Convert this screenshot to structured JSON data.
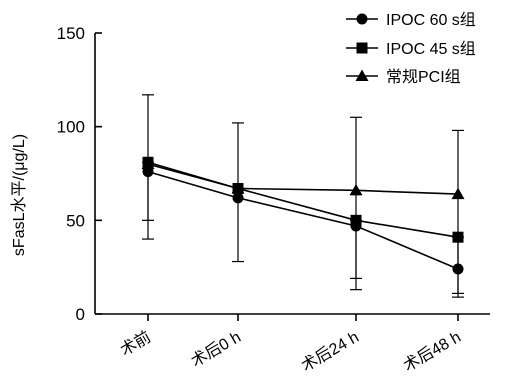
{
  "chart_data": {
    "type": "line",
    "title": "",
    "xlabel": "",
    "ylabel": "sFasL水平/(μg/L)",
    "ylim": [
      0,
      150
    ],
    "yticks": [
      0,
      50,
      100,
      150
    ],
    "categories": [
      "术前",
      "术后0 h",
      "术后24 h",
      "术后48 h"
    ],
    "grid": false,
    "legend_position": "top-right",
    "series": [
      {
        "name": "IPOC 60 s组",
        "marker": "circle",
        "values": [
          76,
          62,
          47,
          24
        ],
        "error": [
          [
            40,
            117
          ],
          [
            28,
            102
          ],
          [
            13,
            105
          ],
          [
            9,
            98
          ]
        ]
      },
      {
        "name": "IPOC 45 s组",
        "marker": "square",
        "values": [
          81,
          67,
          50,
          41
        ],
        "error": [
          [
            50,
            81
          ],
          [
            67,
            67
          ],
          [
            19,
            50
          ],
          [
            11,
            41
          ]
        ]
      },
      {
        "name": "常规PCI组",
        "marker": "triangle",
        "values": [
          80,
          67,
          66,
          64
        ],
        "error": [
          [
            80,
            80
          ],
          [
            67,
            67
          ],
          [
            66,
            66
          ],
          [
            64,
            64
          ]
        ]
      }
    ]
  }
}
